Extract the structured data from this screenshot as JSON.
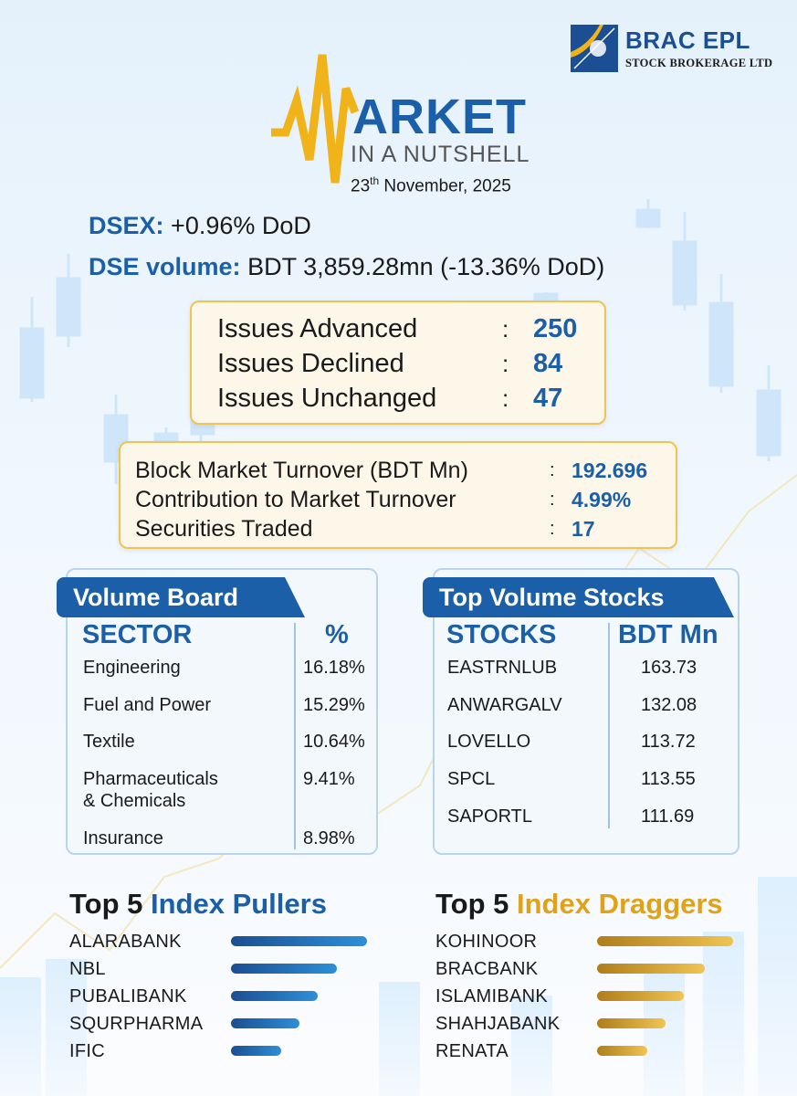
{
  "brand": {
    "name": "BRAC EPL",
    "subtitle": "STOCK BROKERAGE LTD"
  },
  "title": {
    "main": "ARKET",
    "sub": "IN A NUTSHELL",
    "date_day": "23",
    "date_suffix": "th",
    "date_rest": " November, 2025"
  },
  "headline": {
    "dsex_label": "DSEX:",
    "dsex_value": "+0.96% DoD",
    "volume_label": "DSE volume:",
    "volume_value": "BDT 3,859.28mn (-13.36% DoD)"
  },
  "issues": [
    {
      "label": "Issues Advanced",
      "colon": ":",
      "value": "250"
    },
    {
      "label": "Issues Declined",
      "colon": ":",
      "value": "84"
    },
    {
      "label": "Issues Unchanged",
      "colon": ":",
      "value": "47"
    }
  ],
  "block": [
    {
      "label": "Block Market Turnover (BDT Mn)",
      "colon": ":",
      "value": "192.696"
    },
    {
      "label": "Contribution to Market Turnover",
      "colon": ":",
      "value": "4.99%"
    },
    {
      "label": "Securities Traded",
      "colon": ":",
      "value": "17"
    }
  ],
  "volume_board": {
    "tag": "Volume Board",
    "col1": "SECTOR",
    "col2": "%",
    "rows": [
      {
        "name": "Engineering",
        "name2": "",
        "value": "16.18%"
      },
      {
        "name": "Fuel and Power",
        "name2": "",
        "value": "15.29%"
      },
      {
        "name": "Textile",
        "name2": "",
        "value": "10.64%"
      },
      {
        "name": "Pharmaceuticals",
        "name2": "& Chemicals",
        "value": "9.41%"
      },
      {
        "name": "Insurance",
        "name2": "",
        "value": "8.98%"
      }
    ]
  },
  "top_volume": {
    "tag": "Top Volume Stocks",
    "col1": "STOCKS",
    "col2": "BDT Mn",
    "rows": [
      {
        "name": "EASTRNLUB",
        "value": "163.73"
      },
      {
        "name": "ANWARGALV",
        "value": "132.08"
      },
      {
        "name": "LOVELLO",
        "value": "113.72"
      },
      {
        "name": "SPCL",
        "value": "113.55"
      },
      {
        "name": "SAPORTL",
        "value": "111.69"
      }
    ]
  },
  "pullers": {
    "title_a": "Top 5 ",
    "title_b": "Index Pullers",
    "color": "#1b5fa8",
    "items": [
      {
        "name": "ALARABANK",
        "level": 1.0
      },
      {
        "name": "NBL",
        "level": 0.78
      },
      {
        "name": "PUBALIBANK",
        "level": 0.64
      },
      {
        "name": "SQURPHARMA",
        "level": 0.5
      },
      {
        "name": "IFIC",
        "level": 0.37
      }
    ]
  },
  "draggers": {
    "title_a": "Top 5 ",
    "title_b": "Index Draggers",
    "color": "#e0a21a",
    "items": [
      {
        "name": "KOHINOOR",
        "level": 1.0
      },
      {
        "name": "BRACBANK",
        "level": 0.79
      },
      {
        "name": "ISLAMIBANK",
        "level": 0.64
      },
      {
        "name": "SHAHJABANK",
        "level": 0.5
      },
      {
        "name": "RENATA",
        "level": 0.37
      }
    ]
  }
}
